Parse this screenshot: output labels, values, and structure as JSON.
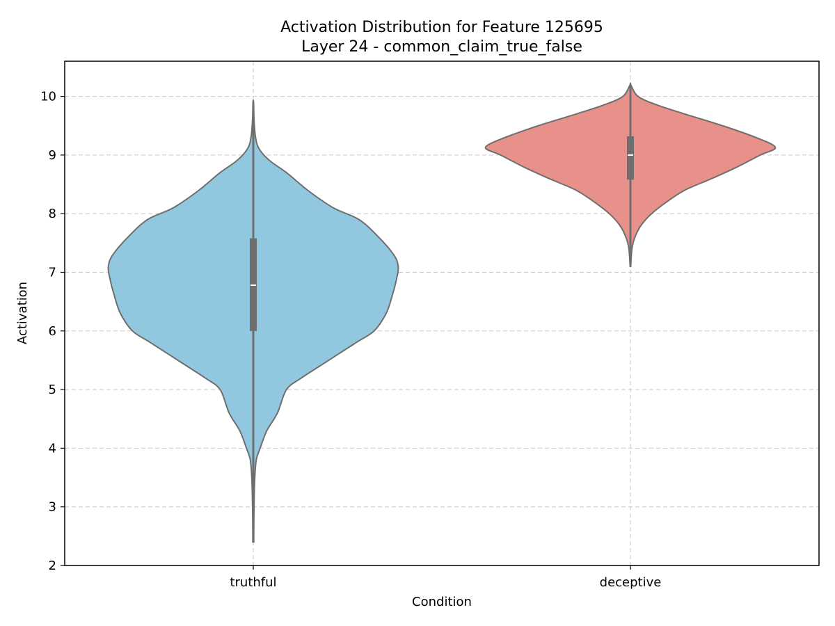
{
  "chart_data": {
    "type": "violin",
    "title": "Activation Distribution for Feature 125695",
    "subtitle": "Layer 24 - common_claim_true_false",
    "xlabel": "Condition",
    "ylabel": "Activation",
    "ylim": [
      2,
      10.6
    ],
    "yticks": [
      2,
      3,
      4,
      5,
      6,
      7,
      8,
      9,
      10
    ],
    "categories": [
      "truthful",
      "deceptive"
    ],
    "grid": true,
    "series": [
      {
        "name": "truthful",
        "color": "#91C8DF",
        "min": 2.4,
        "max": 9.9,
        "q1": 6.0,
        "median": 6.78,
        "q3": 7.58,
        "density": [
          [
            2.4,
            0.003
          ],
          [
            3.0,
            0.005
          ],
          [
            3.5,
            0.01
          ],
          [
            3.8,
            0.02
          ],
          [
            4.0,
            0.045
          ],
          [
            4.3,
            0.09
          ],
          [
            4.6,
            0.16
          ],
          [
            5.0,
            0.22
          ],
          [
            5.2,
            0.32
          ],
          [
            5.5,
            0.5
          ],
          [
            5.8,
            0.68
          ],
          [
            6.0,
            0.8
          ],
          [
            6.3,
            0.88
          ],
          [
            6.6,
            0.92
          ],
          [
            6.9,
            0.95
          ],
          [
            7.1,
            0.96
          ],
          [
            7.3,
            0.93
          ],
          [
            7.6,
            0.83
          ],
          [
            7.9,
            0.7
          ],
          [
            8.1,
            0.53
          ],
          [
            8.4,
            0.36
          ],
          [
            8.7,
            0.22
          ],
          [
            8.9,
            0.11
          ],
          [
            9.1,
            0.04
          ],
          [
            9.3,
            0.015
          ],
          [
            9.6,
            0.005
          ],
          [
            9.9,
            0.002
          ]
        ]
      },
      {
        "name": "deceptive",
        "color": "#E8908A",
        "min": 7.1,
        "max": 10.2,
        "q1": 8.58,
        "median": 9.0,
        "q3": 9.32,
        "density": [
          [
            7.1,
            0.002
          ],
          [
            7.4,
            0.01
          ],
          [
            7.6,
            0.03
          ],
          [
            7.8,
            0.07
          ],
          [
            8.0,
            0.14
          ],
          [
            8.2,
            0.24
          ],
          [
            8.4,
            0.36
          ],
          [
            8.6,
            0.54
          ],
          [
            8.8,
            0.71
          ],
          [
            9.0,
            0.86
          ],
          [
            9.13,
            0.96
          ],
          [
            9.3,
            0.83
          ],
          [
            9.5,
            0.61
          ],
          [
            9.7,
            0.36
          ],
          [
            9.85,
            0.18
          ],
          [
            10.0,
            0.05
          ],
          [
            10.2,
            0.002
          ]
        ]
      }
    ]
  }
}
